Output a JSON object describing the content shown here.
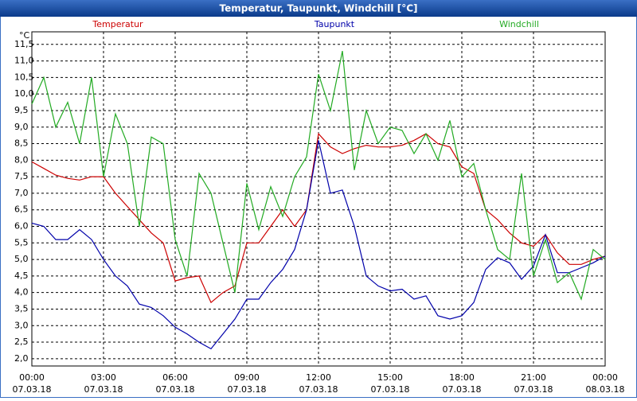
{
  "chart_data": {
    "type": "line",
    "title": "Temperatur, Taupunkt, Windchill [°C]",
    "y_unit": "°C",
    "x": [
      "2018-03-07T00:00",
      "2018-03-07T00:30",
      "2018-03-07T01:00",
      "2018-03-07T01:30",
      "2018-03-07T02:00",
      "2018-03-07T02:30",
      "2018-03-07T03:00",
      "2018-03-07T03:30",
      "2018-03-07T04:00",
      "2018-03-07T04:30",
      "2018-03-07T05:00",
      "2018-03-07T05:30",
      "2018-03-07T06:00",
      "2018-03-07T06:30",
      "2018-03-07T07:00",
      "2018-03-07T07:30",
      "2018-03-07T08:00",
      "2018-03-07T08:30",
      "2018-03-07T09:00",
      "2018-03-07T09:30",
      "2018-03-07T10:00",
      "2018-03-07T10:30",
      "2018-03-07T11:00",
      "2018-03-07T11:30",
      "2018-03-07T12:00",
      "2018-03-07T12:30",
      "2018-03-07T13:00",
      "2018-03-07T13:30",
      "2018-03-07T14:00",
      "2018-03-07T14:30",
      "2018-03-07T15:00",
      "2018-03-07T15:30",
      "2018-03-07T16:00",
      "2018-03-07T16:30",
      "2018-03-07T17:00",
      "2018-03-07T17:30",
      "2018-03-07T18:00",
      "2018-03-07T18:30",
      "2018-03-07T19:00",
      "2018-03-07T19:30",
      "2018-03-07T20:00",
      "2018-03-07T20:30",
      "2018-03-07T21:00",
      "2018-03-07T21:30",
      "2018-03-07T22:00",
      "2018-03-07T22:30",
      "2018-03-07T23:00",
      "2018-03-07T23:30",
      "2018-03-08T00:00"
    ],
    "series": [
      {
        "name": "Temperatur",
        "color": "#cc0000",
        "values": [
          7.95,
          7.75,
          7.55,
          7.45,
          7.4,
          7.5,
          7.5,
          7.0,
          6.6,
          6.2,
          5.8,
          5.5,
          4.35,
          4.45,
          4.5,
          3.7,
          4.0,
          4.2,
          5.5,
          5.5,
          6.0,
          6.5,
          6.0,
          6.5,
          8.8,
          8.4,
          8.2,
          8.35,
          8.45,
          8.4,
          8.4,
          8.45,
          8.6,
          8.8,
          8.5,
          8.4,
          7.8,
          7.6,
          6.5,
          6.2,
          5.8,
          5.5,
          5.4,
          5.75,
          5.2,
          4.85,
          4.85,
          5.0,
          5.1
        ]
      },
      {
        "name": "Taupunkt",
        "color": "#0000aa",
        "values": [
          6.1,
          6.0,
          5.6,
          5.6,
          5.9,
          5.6,
          5.0,
          4.5,
          4.2,
          3.65,
          3.55,
          3.3,
          2.95,
          2.75,
          2.5,
          2.3,
          2.75,
          3.2,
          3.8,
          3.8,
          4.3,
          4.7,
          5.3,
          6.5,
          8.6,
          7.0,
          7.1,
          6.0,
          4.5,
          4.2,
          4.05,
          4.1,
          3.8,
          3.9,
          3.3,
          3.2,
          3.3,
          3.7,
          4.7,
          5.05,
          4.9,
          4.4,
          4.8,
          5.75,
          4.6,
          4.6,
          4.75,
          4.9,
          5.1
        ]
      },
      {
        "name": "Windchill",
        "color": "#22aa22",
        "values": [
          9.7,
          10.5,
          9.0,
          9.75,
          8.5,
          10.5,
          7.5,
          9.4,
          8.5,
          6.0,
          8.7,
          8.5,
          5.6,
          4.5,
          7.6,
          7.0,
          5.5,
          4.0,
          7.3,
          5.9,
          7.2,
          6.3,
          7.5,
          8.1,
          10.6,
          9.5,
          11.3,
          7.7,
          9.5,
          8.5,
          9.0,
          8.9,
          8.2,
          8.8,
          8.0,
          9.2,
          7.5,
          7.9,
          6.5,
          5.3,
          5.0,
          7.6,
          4.5,
          5.6,
          4.3,
          4.6,
          3.8,
          5.3,
          5.0
        ]
      }
    ],
    "xlim": [
      "2018-03-07T00:00",
      "2018-03-08T00:00"
    ],
    "xticks": [
      {
        "value": "2018-03-07T00:00",
        "label": "00:00",
        "date": "07.03.18"
      },
      {
        "value": "2018-03-07T03:00",
        "label": "03:00",
        "date": "07.03.18"
      },
      {
        "value": "2018-03-07T06:00",
        "label": "06:00",
        "date": "07.03.18"
      },
      {
        "value": "2018-03-07T09:00",
        "label": "09:00",
        "date": "07.03.18"
      },
      {
        "value": "2018-03-07T12:00",
        "label": "12:00",
        "date": "07.03.18"
      },
      {
        "value": "2018-03-07T15:00",
        "label": "15:00",
        "date": "07.03.18"
      },
      {
        "value": "2018-03-07T18:00",
        "label": "18:00",
        "date": "07.03.18"
      },
      {
        "value": "2018-03-07T21:00",
        "label": "21:00",
        "date": "07.03.18"
      },
      {
        "value": "2018-03-08T00:00",
        "label": "00:00",
        "date": "08.03.18"
      }
    ],
    "ylim": [
      1.78,
      11.88
    ],
    "yticks": [
      {
        "value": 2,
        "label": "2,0"
      },
      {
        "value": 2.5,
        "label": "2,5"
      },
      {
        "value": 3,
        "label": "3,0"
      },
      {
        "value": 3.5,
        "label": "3,5"
      },
      {
        "value": 4,
        "label": "4,0"
      },
      {
        "value": 4.5,
        "label": "4,5"
      },
      {
        "value": 5,
        "label": "5,0"
      },
      {
        "value": 5.5,
        "label": "5,5"
      },
      {
        "value": 6,
        "label": "6,0"
      },
      {
        "value": 6.5,
        "label": "6,5"
      },
      {
        "value": 7,
        "label": "7,0"
      },
      {
        "value": 7.5,
        "label": "7,5"
      },
      {
        "value": 8,
        "label": "8,0"
      },
      {
        "value": 8.5,
        "label": "8,5"
      },
      {
        "value": 9,
        "label": "9,0"
      },
      {
        "value": 9.5,
        "label": "9,5"
      },
      {
        "value": 10,
        "label": "10,0"
      },
      {
        "value": 10.5,
        "label": "10,5"
      },
      {
        "value": 11,
        "label": "11,0"
      },
      {
        "value": 11.5,
        "label": "11,5"
      }
    ],
    "grid": true
  }
}
